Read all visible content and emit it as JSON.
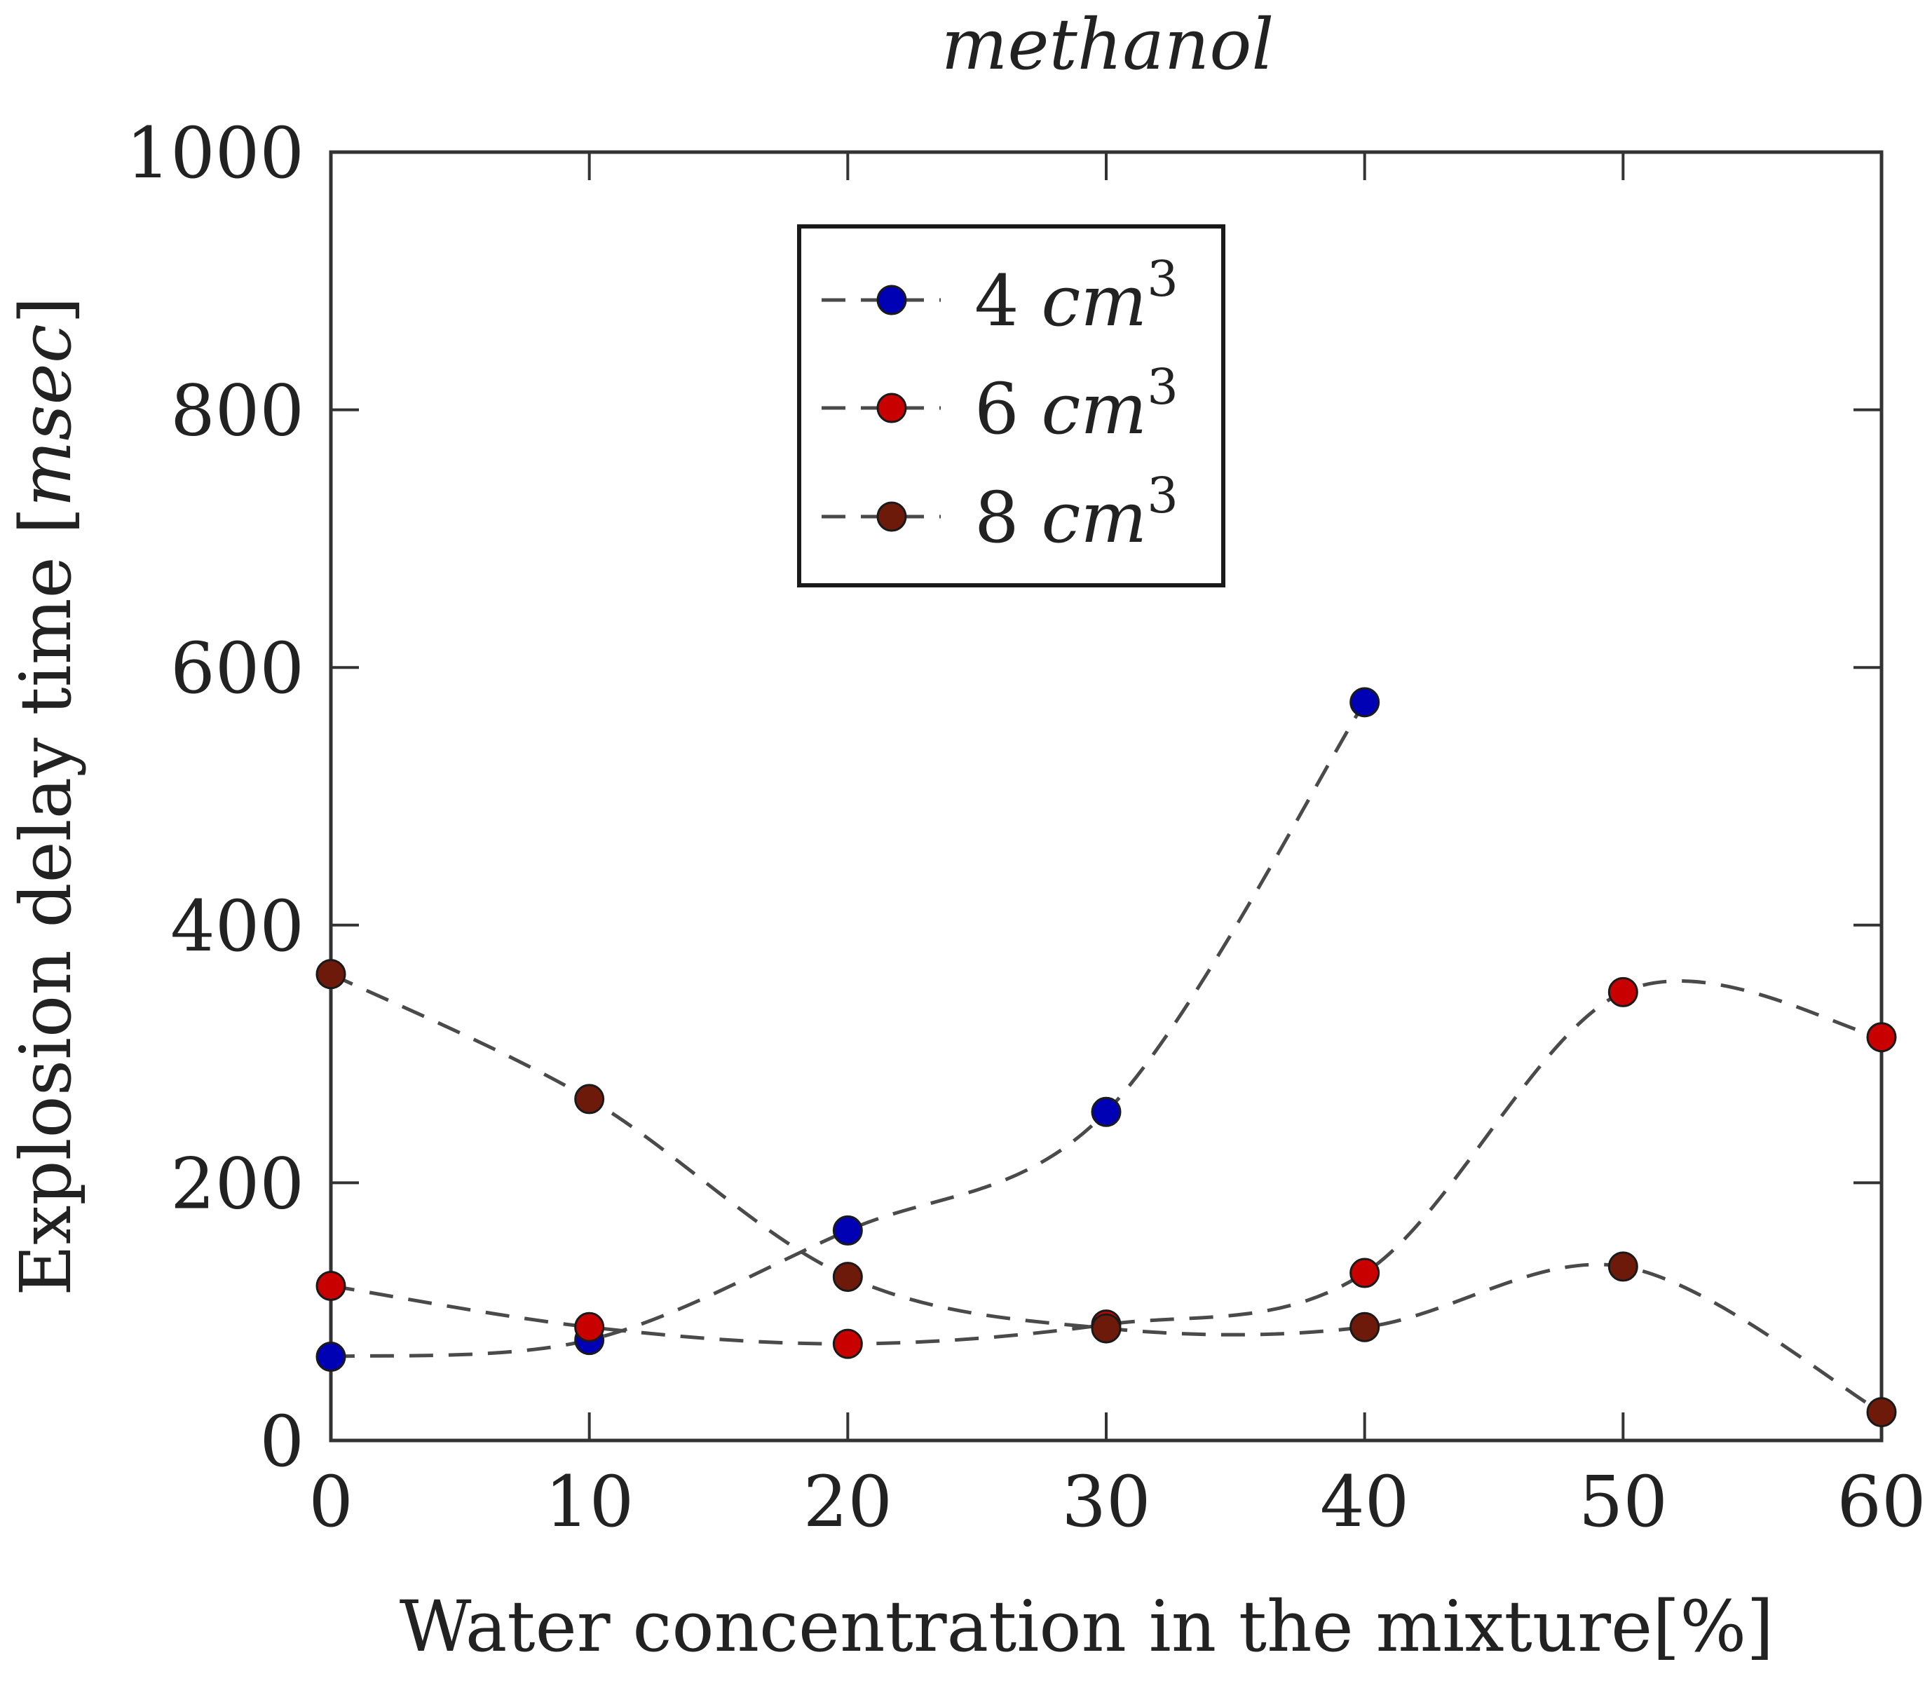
{
  "chart_data": {
    "type": "line",
    "title": "methanol",
    "xlabel": "Water concentration in the mixture[%]",
    "ylabel_parts": {
      "text": "Explosion delay time [",
      "unit": "msec",
      "close": "]"
    },
    "xlim": [
      0,
      60
    ],
    "ylim": [
      0,
      1000
    ],
    "xticks": [
      0,
      10,
      20,
      30,
      40,
      50,
      60
    ],
    "yticks": [
      0,
      200,
      400,
      600,
      800,
      1000
    ],
    "line_style": "dashed smooth",
    "legend_position": "top-center",
    "series": [
      {
        "name": "4 cm3",
        "label_num": "4",
        "label_unit": "cm",
        "label_exp": "3",
        "color": "#0000b4",
        "x": [
          0,
          10,
          20,
          30,
          40
        ],
        "y": [
          65,
          78,
          163,
          255,
          573
        ]
      },
      {
        "name": "6 cm3",
        "label_num": "6",
        "label_unit": "cm",
        "label_exp": "3",
        "color": "#c80000",
        "x": [
          0,
          10,
          20,
          30,
          40,
          50,
          60
        ],
        "y": [
          120,
          88,
          75,
          90,
          130,
          348,
          313
        ]
      },
      {
        "name": "8 cm3",
        "label_num": "8",
        "label_unit": "cm",
        "label_exp": "3",
        "color": "#6e1a0a",
        "x": [
          0,
          10,
          20,
          30,
          40,
          50,
          60
        ],
        "y": [
          362,
          265,
          127,
          87,
          88,
          135,
          22
        ]
      }
    ]
  }
}
